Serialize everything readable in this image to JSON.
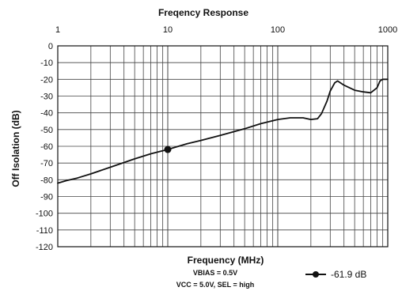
{
  "chart_data": {
    "type": "line",
    "title": "Freqency Response",
    "xlabel": "Frequency (MHz)",
    "ylabel": "Off Isolation (dB)",
    "x_scale": "log",
    "xlim": [
      1,
      1000
    ],
    "ylim": [
      -120,
      0
    ],
    "x_ticks": [
      "1",
      "10",
      "100",
      "1000"
    ],
    "y_ticks": [
      "0",
      "-10",
      "-20",
      "-30",
      "-40",
      "-50",
      "-60",
      "-70",
      "-80",
      "-90",
      "-100",
      "-110",
      "-120"
    ],
    "grid": true,
    "conditions": [
      "VBIAS = 0.5V",
      "VCC = 5.0V, SEL = high"
    ],
    "legend": {
      "position": "bottom-right",
      "entries": [
        "-61.9 dB"
      ]
    },
    "marker": {
      "x": 10,
      "y": -61.9
    },
    "series": [
      {
        "x": [
          1,
          1.2,
          1.5,
          2,
          3,
          5,
          7,
          10,
          15,
          20,
          30,
          50,
          70,
          100,
          130,
          170,
          200,
          230,
          250,
          280,
          300,
          330,
          350,
          400,
          500,
          600,
          700,
          800,
          850,
          900,
          1000
        ],
        "y": [
          -82,
          -80.5,
          -79,
          -76.5,
          -72.5,
          -67.5,
          -64.5,
          -61.9,
          -58.5,
          -56.5,
          -53.5,
          -49.5,
          -46.5,
          -44,
          -43,
          -43,
          -44,
          -43.5,
          -40.5,
          -33,
          -27,
          -22,
          -21,
          -23.5,
          -26.5,
          -27.5,
          -28,
          -25,
          -21,
          -20,
          -20
        ]
      }
    ]
  }
}
